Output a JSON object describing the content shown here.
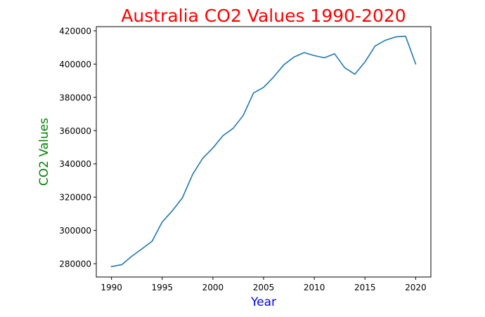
{
  "chart_data": {
    "type": "line",
    "title": "Australia CO2 Values 1990-2020",
    "xlabel": "Year",
    "ylabel": "CO2 Values",
    "xlim": [
      1988.5,
      2021.5
    ],
    "ylim": [
      272000,
      422500
    ],
    "xticks": [
      1990,
      1995,
      2000,
      2005,
      2010,
      2015,
      2020
    ],
    "yticks": [
      280000,
      300000,
      320000,
      340000,
      360000,
      380000,
      400000,
      420000
    ],
    "grid": false,
    "series": [
      {
        "color": "#1f77b4",
        "x": [
          1990,
          1991,
          1992,
          1993,
          1994,
          1995,
          1996,
          1997,
          1998,
          1999,
          2000,
          2001,
          2002,
          2003,
          2004,
          2005,
          2006,
          2007,
          2008,
          2009,
          2010,
          2011,
          2012,
          2013,
          2014,
          2015,
          2016,
          2017,
          2018,
          2019,
          2020
        ],
        "values": [
          278300,
          279400,
          284500,
          288900,
          293500,
          305100,
          311800,
          319700,
          333700,
          343400,
          349600,
          357000,
          361400,
          369200,
          382600,
          386000,
          392300,
          399600,
          404200,
          406900,
          405100,
          403800,
          406200,
          397800,
          393900,
          401300,
          410900,
          414300,
          416300,
          416800,
          400100
        ]
      }
    ]
  },
  "style": {
    "title_color": "#ff0000",
    "xlabel_color": "#0000ff",
    "ylabel_color": "#008000",
    "axis_color": "#000000"
  }
}
